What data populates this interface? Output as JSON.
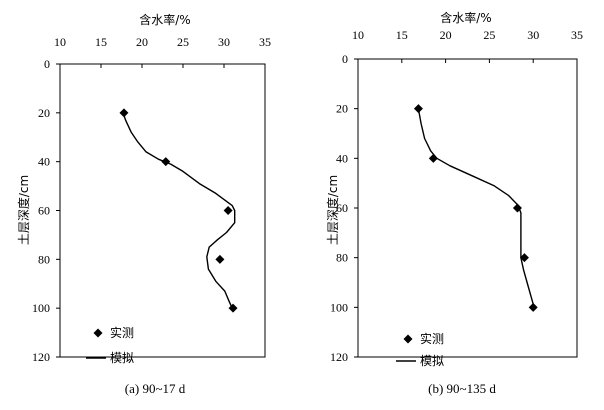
{
  "chart_data": [
    {
      "type": "line",
      "caption": "(a) 90~17 d",
      "xlabel": "含水率/%",
      "ylabel": "土层深度/cm",
      "x_ticks": [
        10,
        15,
        20,
        25,
        30,
        35
      ],
      "y_ticks": [
        0,
        20,
        40,
        60,
        80,
        100,
        120
      ],
      "xlim": [
        10,
        35
      ],
      "ylim": [
        0,
        120
      ],
      "x_axis_position": "top",
      "y_axis_inverted": true,
      "grid": false,
      "legend_position": "bottom-left",
      "series": [
        {
          "name": "实测",
          "type": "scatter",
          "marker": "diamond",
          "points": [
            [
              17.8,
              20
            ],
            [
              22.9,
              40
            ],
            [
              30.5,
              60
            ],
            [
              29.5,
              80
            ],
            [
              31.1,
              100
            ]
          ]
        },
        {
          "name": "模拟",
          "type": "line",
          "points": [
            [
              17.7,
              20
            ],
            [
              18.0,
              23
            ],
            [
              18.7,
              28
            ],
            [
              19.5,
              32
            ],
            [
              20.5,
              36
            ],
            [
              22.0,
              39
            ],
            [
              23.5,
              41
            ],
            [
              25.0,
              44
            ],
            [
              27.0,
              49
            ],
            [
              29.0,
              53
            ],
            [
              31.0,
              58
            ],
            [
              31.3,
              60
            ],
            [
              31.3,
              65
            ],
            [
              30.3,
              69
            ],
            [
              29.2,
              72
            ],
            [
              28.2,
              75
            ],
            [
              27.9,
              79
            ],
            [
              28.1,
              84
            ],
            [
              29.0,
              89
            ],
            [
              30.1,
              93
            ],
            [
              30.6,
              97
            ],
            [
              31.0,
              100
            ]
          ]
        }
      ]
    },
    {
      "type": "line",
      "caption": "(b) 90~135 d",
      "xlabel": "含水率/%",
      "ylabel": "土层深度/cm",
      "x_ticks": [
        10,
        15,
        20,
        25,
        30,
        35
      ],
      "y_ticks": [
        0,
        20,
        40,
        60,
        80,
        100,
        120
      ],
      "xlim": [
        10,
        35
      ],
      "ylim": [
        0,
        120
      ],
      "x_axis_position": "top",
      "y_axis_inverted": true,
      "grid": false,
      "legend_position": "bottom-left",
      "series": [
        {
          "name": "实测",
          "type": "scatter",
          "marker": "diamond",
          "points": [
            [
              16.9,
              20
            ],
            [
              18.6,
              40
            ],
            [
              28.2,
              60
            ],
            [
              29.0,
              80
            ],
            [
              30.0,
              100
            ]
          ]
        },
        {
          "name": "模拟",
          "type": "line",
          "points": [
            [
              16.9,
              20
            ],
            [
              17.2,
              26
            ],
            [
              17.6,
              32
            ],
            [
              18.3,
              37
            ],
            [
              19.0,
              40
            ],
            [
              20.5,
              43
            ],
            [
              23.0,
              47
            ],
            [
              25.5,
              51
            ],
            [
              27.2,
              55
            ],
            [
              28.3,
              59
            ],
            [
              28.6,
              62
            ],
            [
              28.6,
              70
            ],
            [
              28.6,
              80
            ],
            [
              28.9,
              85
            ],
            [
              29.3,
              90
            ],
            [
              29.7,
              95
            ],
            [
              30.1,
              100
            ]
          ]
        }
      ]
    }
  ]
}
